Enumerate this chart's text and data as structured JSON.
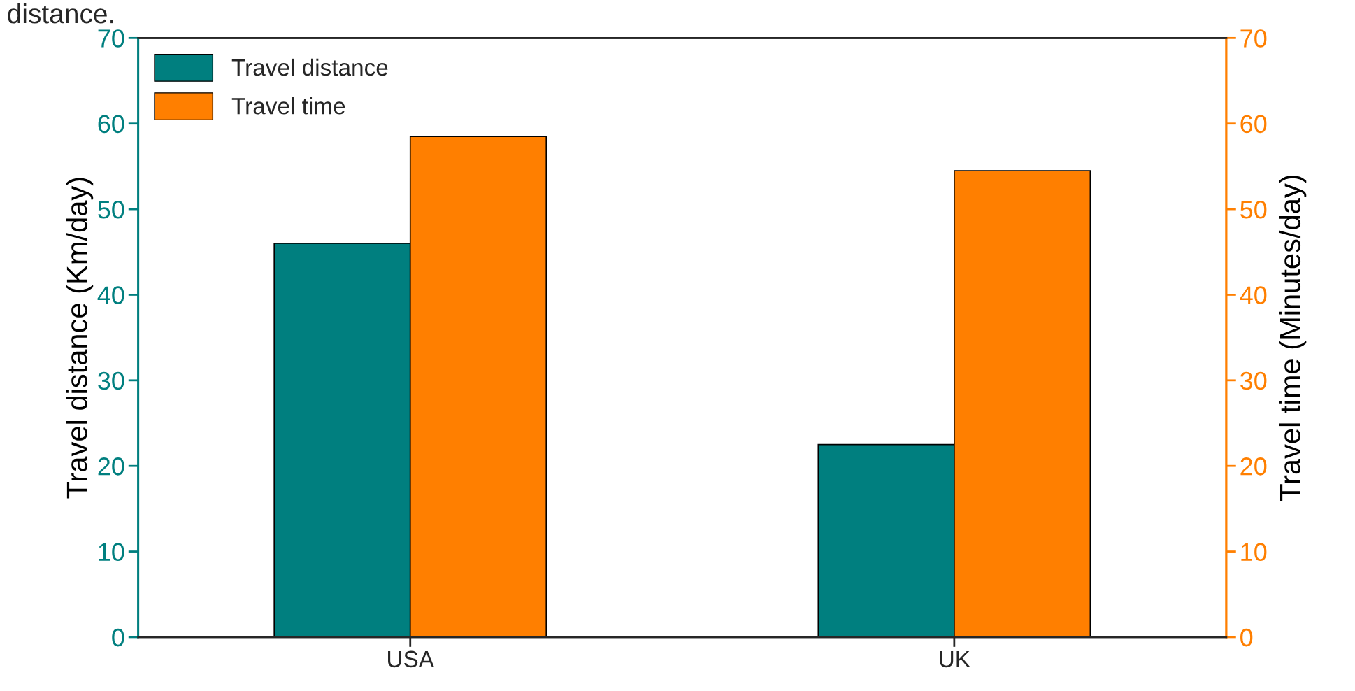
{
  "chart_data": {
    "type": "bar",
    "categories": [
      "USA",
      "UK"
    ],
    "ylabel": "Travel distance (Km/day)",
    "y2label": "Travel time (Minutes/day)",
    "series": [
      {
        "name": "Travel distance",
        "color": "#007f7f",
        "values": [
          46,
          22.5
        ]
      },
      {
        "name": "Travel time",
        "color": "#ff7f00",
        "values": [
          58.5,
          54.5
        ],
        "axis": "y2"
      }
    ],
    "ylim": [
      0,
      70
    ],
    "yticks": [
      0,
      10,
      20,
      30,
      40,
      50,
      60,
      70
    ],
    "y2lim": [
      0,
      70
    ],
    "y2ticks": [
      0,
      10,
      20,
      30,
      40,
      50,
      60,
      70
    ],
    "legend": "top left",
    "grid": false,
    "annotations": [
      "distance."
    ]
  }
}
